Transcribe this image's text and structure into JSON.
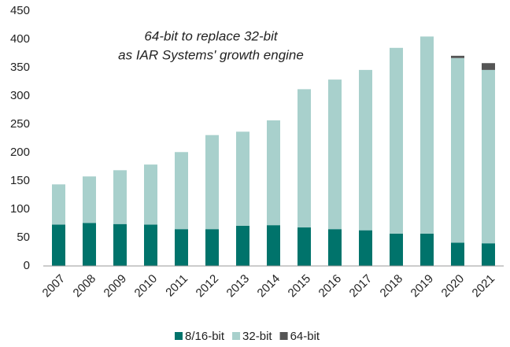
{
  "chart_data": {
    "type": "stacked_bar",
    "annotation": [
      "64-bit to replace 32-bit",
      "as IAR Systems' growth engine"
    ],
    "categories": [
      "2007",
      "2008",
      "2009",
      "2010",
      "2011",
      "2012",
      "2013",
      "2014",
      "2015",
      "2016",
      "2017",
      "2018",
      "2019",
      "2020",
      "2021"
    ],
    "series": [
      {
        "name": "8/16-bit",
        "color": "#00736b",
        "values": [
          73,
          76,
          74,
          73,
          65,
          65,
          71,
          72,
          68,
          65,
          63,
          57,
          57,
          41,
          40
        ]
      },
      {
        "name": "32-bit",
        "color": "#a8d0cc",
        "values": [
          71,
          82,
          95,
          106,
          136,
          166,
          166,
          185,
          244,
          264,
          283,
          328,
          348,
          326,
          306
        ]
      },
      {
        "name": "64-bit",
        "color": "#555555",
        "values": [
          0,
          0,
          0,
          0,
          0,
          0,
          0,
          0,
          0,
          0,
          0,
          0,
          0,
          4,
          12
        ]
      }
    ],
    "ylim": [
      0,
      450
    ],
    "yticks": [
      0,
      50,
      100,
      150,
      200,
      250,
      300,
      350,
      400,
      450
    ],
    "grid": false,
    "legend": "bottom"
  }
}
